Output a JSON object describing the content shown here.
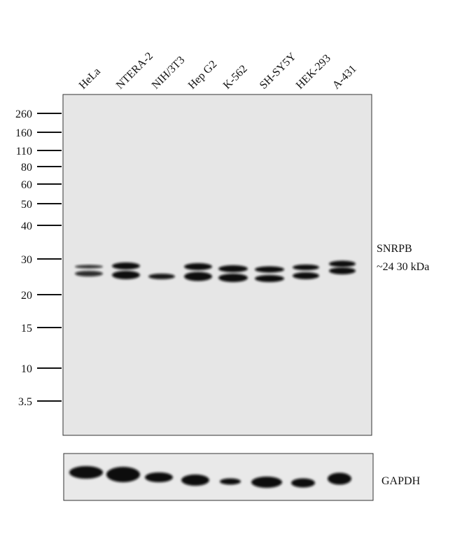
{
  "lanes": [
    "HeLa",
    "NTERA-2",
    "NIH/3T3",
    "Hep G2",
    "K-562",
    "SH-SY5Y",
    "HEK-293",
    "A-431"
  ],
  "markers": [
    "260",
    "160",
    "110",
    "80",
    "60",
    "50",
    "40",
    "30",
    "20",
    "15",
    "10",
    "3.5"
  ],
  "target": {
    "name": "SNRPB",
    "size": "~24 30 kDa"
  },
  "loading_control": "GAPDH"
}
